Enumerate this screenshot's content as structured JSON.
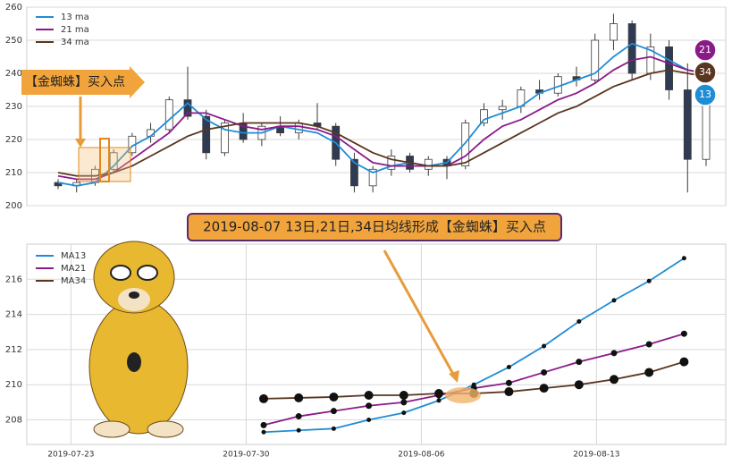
{
  "chart_data": [
    {
      "type": "candlestick",
      "categories": [
        null,
        null,
        null,
        null,
        null,
        null,
        null,
        null,
        null,
        null,
        null,
        null,
        null,
        null,
        null,
        null,
        null,
        null,
        null,
        null,
        null,
        null,
        null,
        null,
        null,
        null,
        null,
        null,
        null,
        null,
        null,
        null,
        null,
        null,
        null,
        null
      ],
      "open": [
        207,
        206,
        207,
        211,
        216,
        221,
        223,
        232,
        227,
        216,
        225,
        220,
        224,
        222,
        225,
        224,
        214,
        206,
        211,
        215,
        211,
        214,
        212,
        225,
        229,
        230,
        235,
        234,
        239,
        238,
        250,
        255,
        240,
        248,
        235,
        214
      ],
      "high": [
        208,
        208,
        212,
        217,
        222,
        225,
        233,
        242,
        229,
        226,
        228,
        225,
        227,
        226,
        231,
        225,
        216,
        212,
        217,
        216,
        215,
        215,
        226,
        231,
        232,
        236,
        238,
        240,
        242,
        252,
        258,
        256,
        252,
        250,
        243,
        236
      ],
      "low": [
        205,
        204,
        206,
        210,
        215,
        219,
        222,
        226,
        214,
        215,
        219,
        218,
        221,
        220,
        223,
        212,
        204,
        204,
        209,
        210,
        209,
        208,
        211,
        224,
        226,
        228,
        232,
        233,
        236,
        237,
        247,
        238,
        238,
        232,
        204,
        212
      ],
      "close": [
        206,
        207,
        211,
        216,
        221,
        223,
        232,
        227,
        216,
        225,
        220,
        224,
        222,
        225,
        224,
        214,
        206,
        211,
        215,
        211,
        214,
        212,
        225,
        229,
        230,
        235,
        234,
        239,
        238,
        250,
        255,
        240,
        248,
        235,
        214,
        234
      ],
      "up_color": "#ffffff",
      "down_color": "#2f3b52",
      "series": [
        {
          "name": "13 ma",
          "color": "#1f8dd6",
          "values": [
            207,
            206,
            207,
            212,
            218,
            221,
            226,
            231,
            226,
            223,
            222,
            222,
            224,
            223,
            222,
            219,
            213,
            210,
            212,
            213,
            212,
            213,
            219,
            226,
            228,
            230,
            234,
            236,
            238,
            240,
            245,
            249,
            247,
            244,
            241,
            240
          ]
        },
        {
          "name": "21 ma",
          "color": "#8b1a89",
          "values": [
            209,
            208,
            208,
            210,
            214,
            218,
            222,
            228,
            228,
            226,
            224,
            223,
            224,
            224,
            223,
            221,
            217,
            213,
            212,
            212,
            212,
            212,
            215,
            220,
            224,
            226,
            229,
            232,
            234,
            237,
            241,
            244,
            245,
            243,
            241,
            240
          ]
        },
        {
          "name": "34 ma",
          "color": "#5a3520",
          "values": [
            210,
            209,
            209,
            210,
            212,
            215,
            218,
            221,
            223,
            224,
            225,
            225,
            225,
            225,
            224,
            222,
            219,
            216,
            214,
            213,
            212,
            212,
            213,
            216,
            219,
            222,
            225,
            228,
            230,
            233,
            236,
            238,
            240,
            241,
            240,
            239
          ]
        }
      ],
      "ylim": [
        200,
        260
      ],
      "yticks": [
        200,
        210,
        220,
        230,
        240,
        250,
        260
      ],
      "grid": true,
      "legend": "upper left",
      "annotation": "【金蜘蛛】买入点",
      "badges": [
        {
          "value": 21,
          "color": "#8b1a89"
        },
        {
          "value": 34,
          "color": "#5a3520"
        },
        {
          "value": 13,
          "color": "#1f8dd6"
        }
      ]
    },
    {
      "type": "line",
      "title": "2019-08-07 13日,21日,34日均线形成【金蜘蛛】买入点",
      "x": [
        "2019-07-31",
        "2019-08-01",
        "2019-08-02",
        "2019-08-05",
        "2019-08-06",
        "2019-08-07",
        "2019-08-08",
        "2019-08-09",
        "2019-08-12",
        "2019-08-13",
        "2019-08-14",
        "2019-08-15",
        "2019-08-16"
      ],
      "series": [
        {
          "name": "MA13",
          "color": "#1f8dd6",
          "values": [
            207.3,
            207.4,
            207.5,
            208.0,
            208.4,
            209.1,
            210.0,
            211.0,
            212.2,
            213.6,
            214.8,
            215.9,
            217.2
          ]
        },
        {
          "name": "MA21",
          "color": "#8b1a89",
          "values": [
            207.7,
            208.2,
            208.5,
            208.8,
            209.0,
            209.4,
            209.8,
            210.1,
            210.7,
            211.3,
            211.8,
            212.3,
            212.9
          ]
        },
        {
          "name": "MA34",
          "color": "#5a3520",
          "values": [
            209.2,
            209.25,
            209.3,
            209.4,
            209.4,
            209.5,
            209.5,
            209.6,
            209.8,
            210.0,
            210.3,
            210.7,
            211.3
          ]
        }
      ],
      "xticks": [
        "2019-07-23",
        "2019-07-30",
        "2019-08-06",
        "2019-08-13"
      ],
      "ylim": [
        206.6,
        218
      ],
      "yticks": [
        208,
        210,
        212,
        214,
        216
      ],
      "grid": true,
      "legend": "upper left"
    }
  ]
}
